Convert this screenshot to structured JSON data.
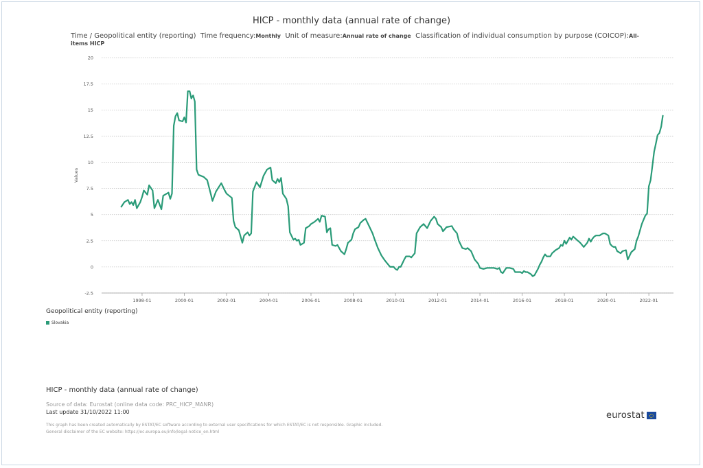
{
  "header": {
    "title": "HICP - monthly data (annual rate of change)",
    "dims": [
      {
        "label": "Time / Geopolitical entity (reporting)",
        "value": ""
      },
      {
        "label": "Time frequency:",
        "value": "Monthly"
      },
      {
        "label": "Unit of measure:",
        "value": "Annual rate of change"
      },
      {
        "label": "Classification of individual consumption by purpose (COICOP):",
        "value": "All-items HICP"
      }
    ]
  },
  "legend": {
    "title": "Geopolitical entity (reporting)",
    "items": [
      {
        "label": "Slovakia",
        "color": "#2a9b78"
      }
    ]
  },
  "footer": {
    "title": "HICP - monthly data (annual rate of change)",
    "source": "Source of data: Eurostat (online data code: PRC_HICP_MANR)",
    "last_update": "Last update 31/10/2022 11:00",
    "disclaimer1": "This graph has been created automatically by ESTAT/EC software according to external user specifications for which ESTAT/EC is not responsible. Graphic included.",
    "disclaimer2": "General disclaimer of the EC website: https://ec.europa.eu/info/legal-notice_en.html",
    "logo": "eurostat"
  },
  "chart_data": {
    "type": "line",
    "ylabel": "Values",
    "ylim": [
      -2.5,
      20
    ],
    "yticks": [
      "20",
      "17.5",
      "15",
      "12.5",
      "10",
      "7.5",
      "5",
      "2.5",
      "0",
      "-2.5"
    ],
    "xticks": [
      "1998-01",
      "2000-01",
      "2002-01",
      "2004-01",
      "2006-01",
      "2008-01",
      "2010-01",
      "2012-01",
      "2014-01",
      "2016-01",
      "2018-01",
      "2020-01",
      "2022-01"
    ],
    "grid": true,
    "x_range": [
      "1997-01",
      "2022-09"
    ],
    "series": [
      {
        "name": "Slovakia",
        "color": "#2a9b78",
        "points": [
          [
            "1997-01",
            5.7
          ],
          [
            "1997-03",
            6.2
          ],
          [
            "1997-05",
            6.4
          ],
          [
            "1997-06",
            6.0
          ],
          [
            "1997-07",
            6.2
          ],
          [
            "1997-08",
            5.9
          ],
          [
            "1997-09",
            6.4
          ],
          [
            "1997-10",
            5.6
          ],
          [
            "1997-12",
            6.2
          ],
          [
            "1998-01",
            6.7
          ],
          [
            "1998-02",
            7.3
          ],
          [
            "1998-04",
            6.9
          ],
          [
            "1998-05",
            7.8
          ],
          [
            "1998-07",
            7.3
          ],
          [
            "1998-08",
            5.6
          ],
          [
            "1998-10",
            6.4
          ],
          [
            "1998-12",
            5.5
          ],
          [
            "1999-01",
            6.8
          ],
          [
            "1999-04",
            7.1
          ],
          [
            "1999-05",
            6.5
          ],
          [
            "1999-06",
            7.0
          ],
          [
            "1999-07",
            13.5
          ],
          [
            "1999-08",
            14.4
          ],
          [
            "1999-09",
            14.7
          ],
          [
            "1999-10",
            14.0
          ],
          [
            "1999-12",
            13.9
          ],
          [
            "2000-01",
            14.3
          ],
          [
            "2000-02",
            13.8
          ],
          [
            "2000-03",
            16.8
          ],
          [
            "2000-04",
            16.8
          ],
          [
            "2000-05",
            16.1
          ],
          [
            "2000-06",
            16.4
          ],
          [
            "2000-07",
            15.8
          ],
          [
            "2000-08",
            9.3
          ],
          [
            "2000-09",
            8.8
          ],
          [
            "2000-12",
            8.6
          ],
          [
            "2001-02",
            8.3
          ],
          [
            "2001-04",
            7.0
          ],
          [
            "2001-05",
            6.3
          ],
          [
            "2001-07",
            7.2
          ],
          [
            "2001-10",
            8.0
          ],
          [
            "2001-12",
            7.3
          ],
          [
            "2002-01",
            7.0
          ],
          [
            "2002-04",
            6.6
          ],
          [
            "2002-05",
            4.4
          ],
          [
            "2002-06",
            3.8
          ],
          [
            "2002-08",
            3.5
          ],
          [
            "2002-10",
            2.3
          ],
          [
            "2002-11",
            3.0
          ],
          [
            "2003-01",
            3.3
          ],
          [
            "2003-02",
            3.0
          ],
          [
            "2003-03",
            3.2
          ],
          [
            "2003-04",
            7.2
          ],
          [
            "2003-06",
            8.1
          ],
          [
            "2003-08",
            7.6
          ],
          [
            "2003-10",
            8.7
          ],
          [
            "2003-12",
            9.3
          ],
          [
            "2004-02",
            9.5
          ],
          [
            "2004-03",
            8.3
          ],
          [
            "2004-05",
            8.0
          ],
          [
            "2004-06",
            8.4
          ],
          [
            "2004-07",
            8.1
          ],
          [
            "2004-08",
            8.5
          ],
          [
            "2004-09",
            7.0
          ],
          [
            "2004-11",
            6.5
          ],
          [
            "2004-12",
            5.8
          ],
          [
            "2005-01",
            3.3
          ],
          [
            "2005-03",
            2.6
          ],
          [
            "2005-04",
            2.7
          ],
          [
            "2005-05",
            2.5
          ],
          [
            "2005-06",
            2.6
          ],
          [
            "2005-07",
            2.1
          ],
          [
            "2005-09",
            2.3
          ],
          [
            "2005-10",
            3.7
          ],
          [
            "2005-12",
            3.9
          ],
          [
            "2006-01",
            4.1
          ],
          [
            "2006-03",
            4.3
          ],
          [
            "2006-05",
            4.6
          ],
          [
            "2006-06",
            4.3
          ],
          [
            "2006-07",
            4.9
          ],
          [
            "2006-09",
            4.8
          ],
          [
            "2006-10",
            3.3
          ],
          [
            "2006-11",
            3.6
          ],
          [
            "2006-12",
            3.7
          ],
          [
            "2007-01",
            2.1
          ],
          [
            "2007-03",
            2.0
          ],
          [
            "2007-04",
            2.1
          ],
          [
            "2007-06",
            1.5
          ],
          [
            "2007-08",
            1.2
          ],
          [
            "2007-09",
            1.7
          ],
          [
            "2007-10",
            2.3
          ],
          [
            "2007-12",
            2.6
          ],
          [
            "2008-01",
            3.2
          ],
          [
            "2008-02",
            3.6
          ],
          [
            "2008-04",
            3.8
          ],
          [
            "2008-05",
            4.2
          ],
          [
            "2008-07",
            4.5
          ],
          [
            "2008-08",
            4.6
          ],
          [
            "2008-10",
            3.9
          ],
          [
            "2008-12",
            3.2
          ],
          [
            "2009-01",
            2.7
          ],
          [
            "2009-03",
            1.8
          ],
          [
            "2009-05",
            1.1
          ],
          [
            "2009-07",
            0.6
          ],
          [
            "2009-08",
            0.4
          ],
          [
            "2009-10",
            0.0
          ],
          [
            "2009-12",
            0.0
          ],
          [
            "2010-01",
            -0.2
          ],
          [
            "2010-02",
            -0.3
          ],
          [
            "2010-03",
            0.0
          ],
          [
            "2010-04",
            0.0
          ],
          [
            "2010-06",
            0.7
          ],
          [
            "2010-07",
            1.0
          ],
          [
            "2010-09",
            1.0
          ],
          [
            "2010-10",
            0.9
          ],
          [
            "2010-12",
            1.3
          ],
          [
            "2011-01",
            3.2
          ],
          [
            "2011-03",
            3.8
          ],
          [
            "2011-05",
            4.1
          ],
          [
            "2011-07",
            3.7
          ],
          [
            "2011-09",
            4.4
          ],
          [
            "2011-11",
            4.8
          ],
          [
            "2011-12",
            4.6
          ],
          [
            "2012-01",
            4.1
          ],
          [
            "2012-03",
            3.8
          ],
          [
            "2012-04",
            3.4
          ],
          [
            "2012-06",
            3.8
          ],
          [
            "2012-09",
            3.9
          ],
          [
            "2012-10",
            3.6
          ],
          [
            "2012-12",
            3.2
          ],
          [
            "2013-01",
            2.5
          ],
          [
            "2013-03",
            1.8
          ],
          [
            "2013-05",
            1.7
          ],
          [
            "2013-06",
            1.8
          ],
          [
            "2013-08",
            1.5
          ],
          [
            "2013-10",
            0.7
          ],
          [
            "2013-12",
            0.3
          ],
          [
            "2014-01",
            -0.1
          ],
          [
            "2014-03",
            -0.2
          ],
          [
            "2014-05",
            -0.1
          ],
          [
            "2014-06",
            -0.1
          ],
          [
            "2014-08",
            -0.1
          ],
          [
            "2014-09",
            -0.1
          ],
          [
            "2014-11",
            -0.2
          ],
          [
            "2014-12",
            -0.1
          ],
          [
            "2015-01",
            -0.5
          ],
          [
            "2015-02",
            -0.6
          ],
          [
            "2015-04",
            -0.1
          ],
          [
            "2015-06",
            -0.1
          ],
          [
            "2015-08",
            -0.2
          ],
          [
            "2015-09",
            -0.5
          ],
          [
            "2015-11",
            -0.5
          ],
          [
            "2015-12",
            -0.5
          ],
          [
            "2016-01",
            -0.6
          ],
          [
            "2016-02",
            -0.4
          ],
          [
            "2016-03",
            -0.5
          ],
          [
            "2016-04",
            -0.5
          ],
          [
            "2016-06",
            -0.7
          ],
          [
            "2016-07",
            -0.9
          ],
          [
            "2016-08",
            -0.8
          ],
          [
            "2016-10",
            -0.2
          ],
          [
            "2016-11",
            0.2
          ],
          [
            "2016-12",
            0.5
          ],
          [
            "2017-01",
            0.9
          ],
          [
            "2017-02",
            1.2
          ],
          [
            "2017-03",
            1.0
          ],
          [
            "2017-04",
            1.0
          ],
          [
            "2017-05",
            1.0
          ],
          [
            "2017-06",
            1.3
          ],
          [
            "2017-08",
            1.6
          ],
          [
            "2017-10",
            1.8
          ],
          [
            "2017-11",
            2.1
          ],
          [
            "2017-12",
            2.0
          ],
          [
            "2018-01",
            2.5
          ],
          [
            "2018-02",
            2.2
          ],
          [
            "2018-03",
            2.5
          ],
          [
            "2018-04",
            2.8
          ],
          [
            "2018-05",
            2.6
          ],
          [
            "2018-06",
            2.9
          ],
          [
            "2018-08",
            2.6
          ],
          [
            "2018-10",
            2.3
          ],
          [
            "2018-12",
            1.9
          ],
          [
            "2019-01",
            2.1
          ],
          [
            "2019-02",
            2.3
          ],
          [
            "2019-03",
            2.7
          ],
          [
            "2019-04",
            2.4
          ],
          [
            "2019-05",
            2.7
          ],
          [
            "2019-06",
            2.9
          ],
          [
            "2019-07",
            3.0
          ],
          [
            "2019-09",
            3.0
          ],
          [
            "2019-10",
            3.1
          ],
          [
            "2019-11",
            3.2
          ],
          [
            "2019-12",
            3.2
          ],
          [
            "2020-01",
            3.1
          ],
          [
            "2020-02",
            3.0
          ],
          [
            "2020-03",
            2.2
          ],
          [
            "2020-04",
            2.0
          ],
          [
            "2020-05",
            1.9
          ],
          [
            "2020-06",
            1.9
          ],
          [
            "2020-07",
            1.5
          ],
          [
            "2020-09",
            1.3
          ],
          [
            "2020-10",
            1.5
          ],
          [
            "2020-12",
            1.6
          ],
          [
            "2021-01",
            0.7
          ],
          [
            "2021-03",
            1.4
          ],
          [
            "2021-05",
            1.7
          ],
          [
            "2021-06",
            2.5
          ],
          [
            "2021-07",
            2.9
          ],
          [
            "2021-08",
            3.5
          ],
          [
            "2021-09",
            4.1
          ],
          [
            "2021-10",
            4.5
          ],
          [
            "2021-11",
            4.9
          ],
          [
            "2021-12",
            5.1
          ],
          [
            "2022-01",
            7.7
          ],
          [
            "2022-02",
            8.3
          ],
          [
            "2022-03",
            9.6
          ],
          [
            "2022-04",
            11.0
          ],
          [
            "2022-05",
            11.8
          ],
          [
            "2022-06",
            12.6
          ],
          [
            "2022-07",
            12.8
          ],
          [
            "2022-08",
            13.4
          ],
          [
            "2022-09",
            14.5
          ]
        ]
      }
    ]
  }
}
